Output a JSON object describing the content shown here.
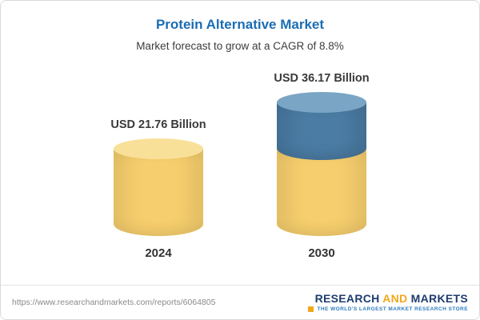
{
  "header": {
    "title": "Protein Alternative Market",
    "subtitle": "Market forecast to grow at a CAGR of 8.8%"
  },
  "chart_data": {
    "type": "bar",
    "style": "stacked-cylinder",
    "title": "Protein Alternative Market",
    "subtitle": "Market forecast to grow at a CAGR of 8.8%",
    "cagr": "8.8%",
    "unit": "USD Billion",
    "categories": [
      "2024",
      "2030"
    ],
    "values": [
      21.76,
      36.17
    ],
    "value_labels": [
      "USD 21.76 Billion",
      "USD 36.17 Billion"
    ],
    "legend_position": "none",
    "grid": false,
    "colors": {
      "base": "#f6ce6d",
      "base_cap": "#f9e099",
      "growth": "#4b7ca4",
      "growth_cap": "#7aa5c4"
    }
  },
  "footer": {
    "url": "https://www.researchandmarkets.com/reports/6064805",
    "logo": {
      "word1": "RESEARCH",
      "word2": "AND",
      "word3": "MARKETS",
      "tagline": "THE WORLD'S LARGEST MARKET RESEARCH STORE"
    }
  }
}
